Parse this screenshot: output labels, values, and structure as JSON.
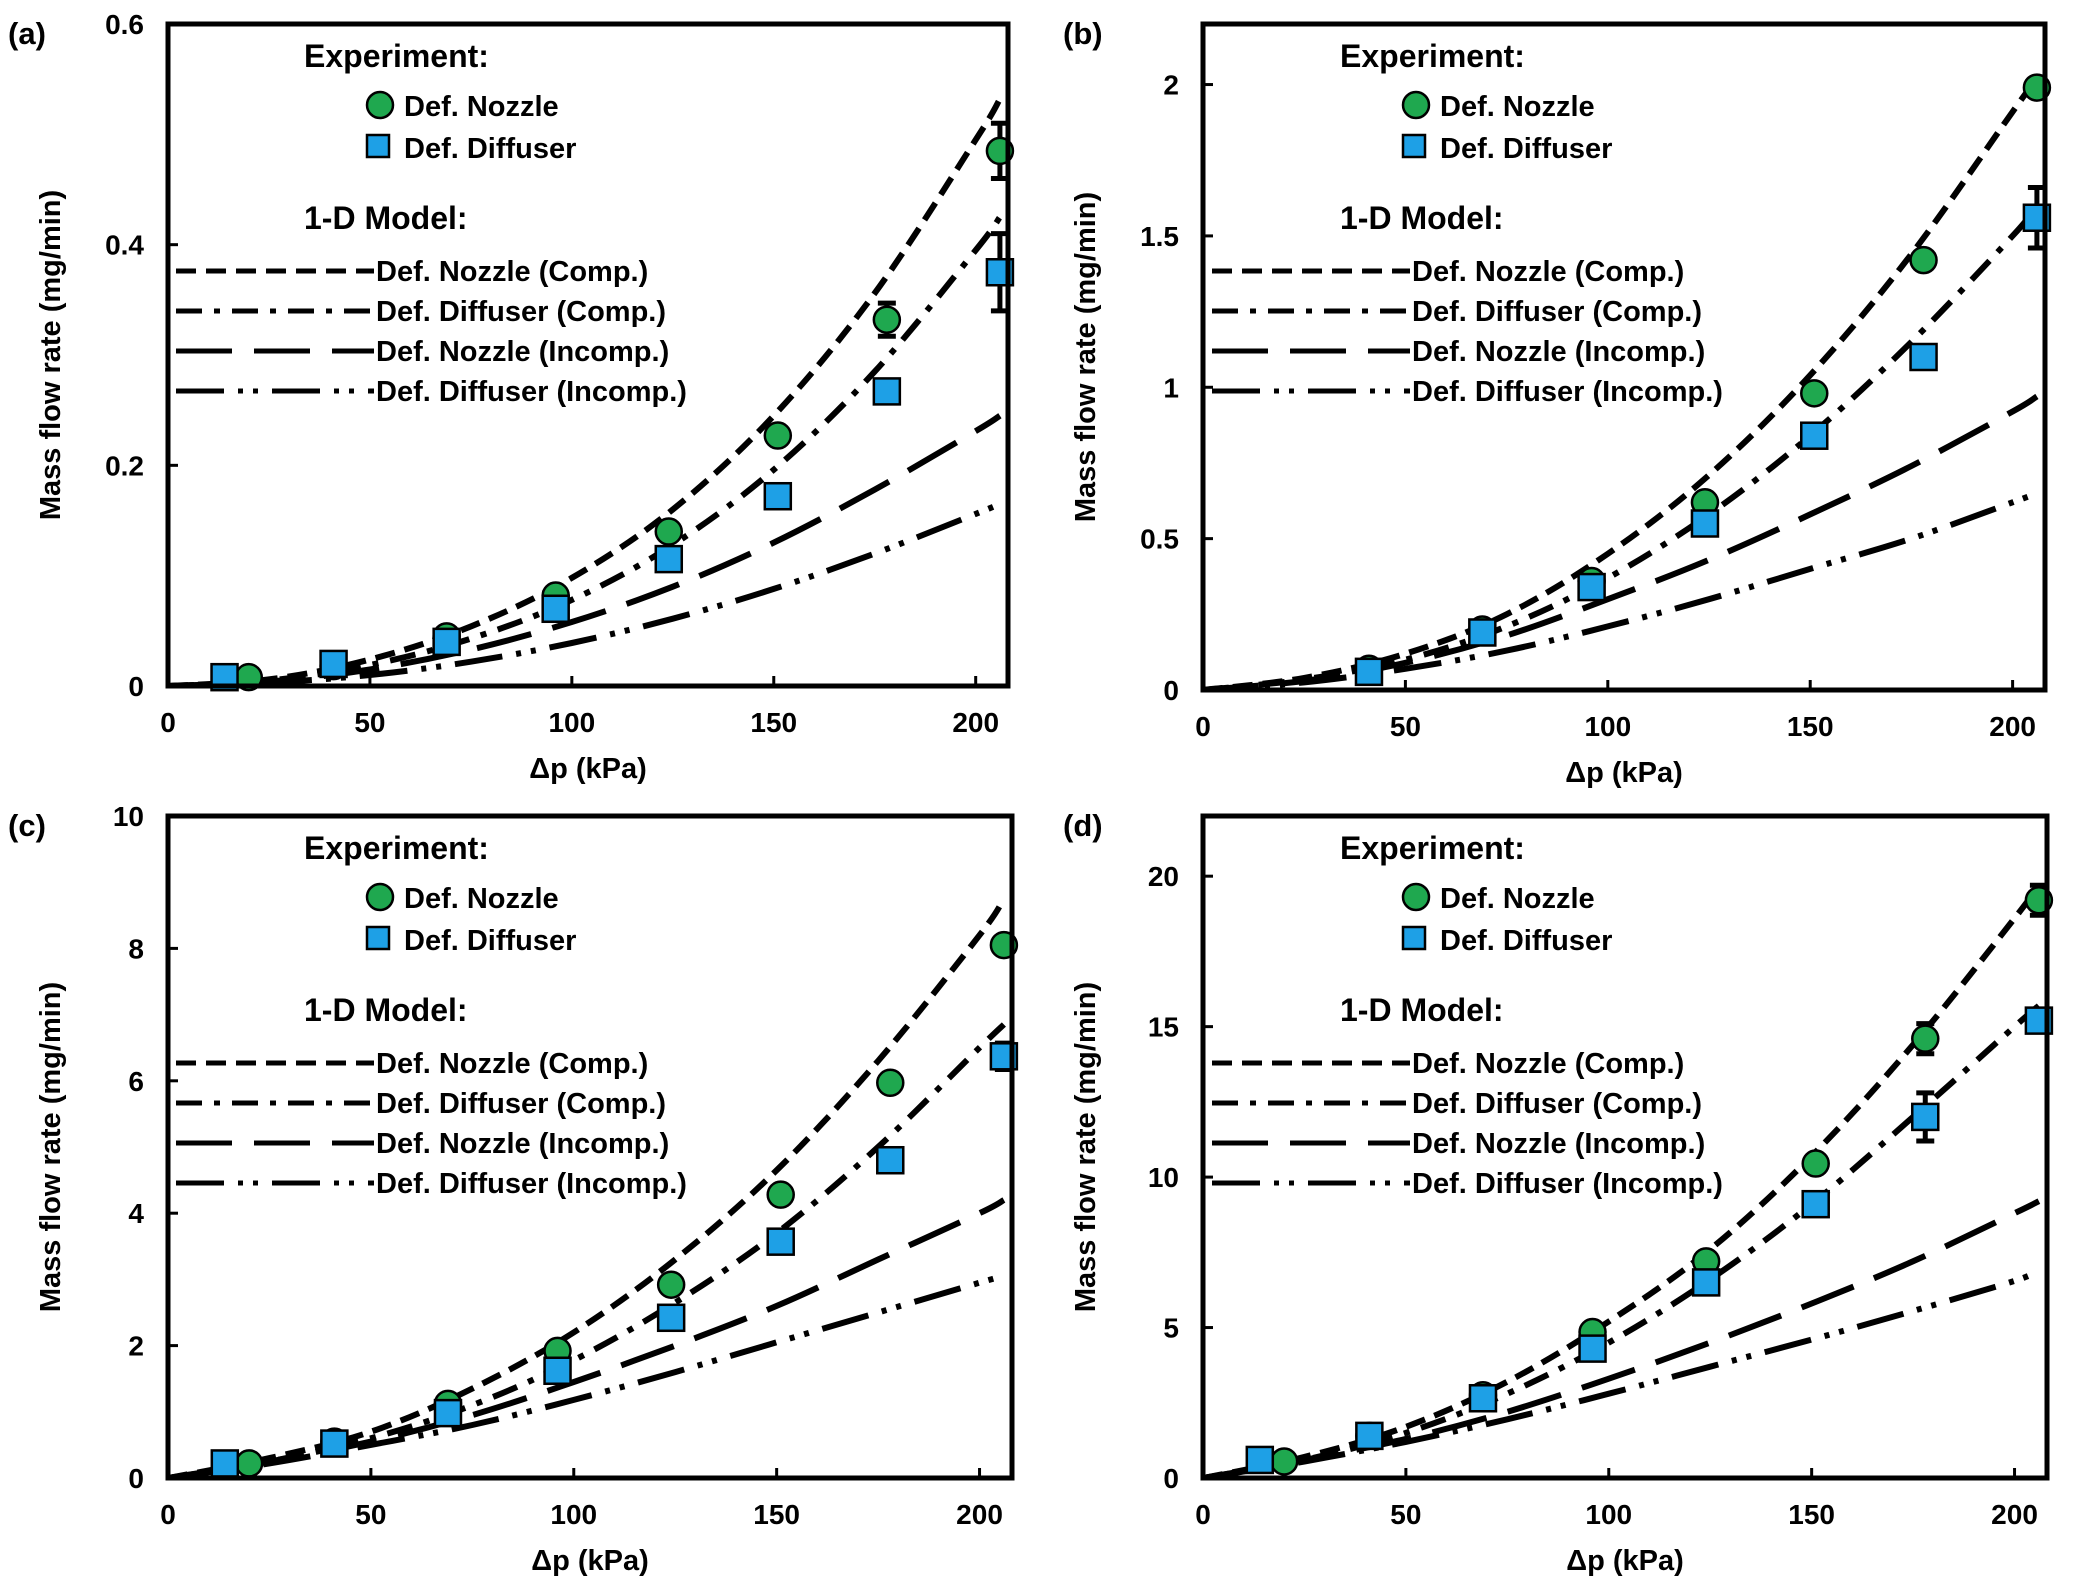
{
  "colors": {
    "nozzle_marker": "#1fa84f",
    "diffuser_marker": "#1ea0e6",
    "line": "#000000",
    "background": "#ffffff"
  },
  "chart_data": [
    {
      "panel_label": "(a)",
      "type": "scatter",
      "xlabel": "Δp (kPa)",
      "ylabel": "Mass flow rate (mg/min)",
      "xlim": [
        0,
        208
      ],
      "ylim": [
        0,
        0.6
      ],
      "xticks": [
        0,
        50,
        100,
        150,
        200
      ],
      "yticks": [
        0,
        0.2,
        0.4,
        0.6
      ],
      "ytick_labels": [
        "0",
        "0.2",
        "0.4",
        "0.6"
      ],
      "grid": false,
      "legend": {
        "experiment_heading": "Experiment:",
        "model_heading": "1-D Model:",
        "entries": [
          "Def. Nozzle",
          "Def. Diffuser",
          "Def. Nozzle (Comp.)",
          "Def. Diffuser (Comp.)",
          "Def. Nozzle (Incomp.)",
          "Def. Diffuser (Incomp.)"
        ],
        "placement": "top-left"
      },
      "series": [
        {
          "name": "Def. Nozzle",
          "kind": "points",
          "marker": "circle",
          "x": [
            20,
            41,
            69,
            96,
            124,
            151,
            178,
            206
          ],
          "y": [
            0.008,
            0.018,
            0.045,
            0.082,
            0.14,
            0.227,
            0.332,
            0.485
          ],
          "err": [
            0,
            0,
            0,
            0,
            0,
            0.005,
            0.015,
            0.025
          ]
        },
        {
          "name": "Def. Diffuser",
          "kind": "points",
          "marker": "square",
          "x": [
            14,
            41,
            69,
            96,
            124,
            151,
            178,
            206
          ],
          "y": [
            0.008,
            0.02,
            0.04,
            0.07,
            0.115,
            0.172,
            0.267,
            0.375
          ],
          "err": [
            0,
            0,
            0,
            0,
            0,
            0,
            0,
            0.035
          ]
        },
        {
          "name": "Def. Nozzle (Comp.)",
          "kind": "curve",
          "dash": "short",
          "x": [
            0,
            25,
            50,
            75,
            100,
            125,
            150,
            175,
            200,
            206
          ],
          "y": [
            0,
            0.006,
            0.024,
            0.054,
            0.098,
            0.16,
            0.245,
            0.356,
            0.495,
            0.532
          ]
        },
        {
          "name": "Def. Diffuser (Comp.)",
          "kind": "curve",
          "dash": "dash-dot",
          "x": [
            0,
            25,
            50,
            75,
            100,
            125,
            150,
            175,
            200,
            206
          ],
          "y": [
            0,
            0.005,
            0.019,
            0.043,
            0.078,
            0.128,
            0.196,
            0.285,
            0.395,
            0.425
          ]
        },
        {
          "name": "Def. Nozzle (Incomp.)",
          "kind": "curve",
          "dash": "long",
          "x": [
            0,
            25,
            50,
            75,
            100,
            125,
            150,
            175,
            200,
            206
          ],
          "y": [
            0,
            0.004,
            0.015,
            0.033,
            0.058,
            0.09,
            0.13,
            0.178,
            0.231,
            0.245
          ]
        },
        {
          "name": "Def. Diffuser (Incomp.)",
          "kind": "curve",
          "dash": "dash-dot-dot",
          "x": [
            0,
            25,
            50,
            75,
            100,
            125,
            150,
            175,
            200,
            206
          ],
          "y": [
            0,
            0.003,
            0.01,
            0.022,
            0.039,
            0.061,
            0.088,
            0.12,
            0.156,
            0.165
          ]
        }
      ]
    },
    {
      "panel_label": "(b)",
      "type": "scatter",
      "xlabel": "Δp (kPa)",
      "ylabel": "Mass flow rate (mg/min)",
      "xlim": [
        0,
        208
      ],
      "ylim": [
        0,
        2.2
      ],
      "xticks": [
        0,
        50,
        100,
        150,
        200
      ],
      "yticks": [
        0,
        0.5,
        1,
        1.5,
        2
      ],
      "ytick_labels": [
        "0",
        "0.5",
        "1",
        "1.5",
        "2"
      ],
      "grid": false,
      "legend": {
        "experiment_heading": "Experiment:",
        "model_heading": "1-D Model:",
        "entries": [
          "Def. Nozzle",
          "Def. Diffuser",
          "Def. Nozzle (Comp.)",
          "Def. Diffuser (Comp.)",
          "Def. Nozzle (Incomp.)",
          "Def. Diffuser (Incomp.)"
        ],
        "placement": "top-left"
      },
      "series": [
        {
          "name": "Def. Nozzle",
          "kind": "points",
          "marker": "circle",
          "x": [
            41,
            69,
            96,
            124,
            151,
            178,
            206
          ],
          "y": [
            0.07,
            0.2,
            0.36,
            0.62,
            0.98,
            1.42,
            1.99
          ],
          "err": [
            0,
            0,
            0,
            0,
            0,
            0,
            0
          ]
        },
        {
          "name": "Def. Diffuser",
          "kind": "points",
          "marker": "square",
          "x": [
            41,
            69,
            96,
            124,
            151,
            178,
            206
          ],
          "y": [
            0.06,
            0.19,
            0.34,
            0.55,
            0.84,
            1.1,
            1.56
          ],
          "err": [
            0,
            0,
            0,
            0,
            0,
            0,
            0.1
          ]
        },
        {
          "name": "Def. Nozzle (Comp.)",
          "kind": "curve",
          "dash": "short",
          "x": [
            0,
            25,
            50,
            75,
            100,
            125,
            150,
            175,
            200,
            206
          ],
          "y": [
            0,
            0.04,
            0.12,
            0.25,
            0.45,
            0.71,
            1.04,
            1.44,
            1.91,
            2.02
          ]
        },
        {
          "name": "Def. Diffuser (Comp.)",
          "kind": "curve",
          "dash": "dash-dot",
          "x": [
            0,
            25,
            50,
            75,
            100,
            125,
            150,
            175,
            200,
            206
          ],
          "y": [
            0,
            0.035,
            0.1,
            0.21,
            0.37,
            0.58,
            0.84,
            1.15,
            1.5,
            1.6
          ]
        },
        {
          "name": "Def. Nozzle (Incomp.)",
          "kind": "curve",
          "dash": "long",
          "x": [
            0,
            25,
            50,
            75,
            100,
            125,
            150,
            175,
            200,
            206
          ],
          "y": [
            0,
            0.03,
            0.09,
            0.18,
            0.3,
            0.43,
            0.58,
            0.74,
            0.92,
            0.97
          ]
        },
        {
          "name": "Def. Diffuser (Incomp.)",
          "kind": "curve",
          "dash": "dash-dot-dot",
          "x": [
            0,
            25,
            50,
            75,
            100,
            125,
            150,
            175,
            200,
            206
          ],
          "y": [
            0,
            0.025,
            0.07,
            0.13,
            0.21,
            0.3,
            0.4,
            0.5,
            0.62,
            0.65
          ]
        }
      ]
    },
    {
      "panel_label": "(c)",
      "type": "scatter",
      "xlabel": "Δp (kPa)",
      "ylabel": "Mass flow rate (mg/min)",
      "xlim": [
        0,
        208
      ],
      "ylim": [
        0,
        10
      ],
      "xticks": [
        0,
        50,
        100,
        150,
        200
      ],
      "yticks": [
        0,
        2,
        4,
        6,
        8,
        10
      ],
      "ytick_labels": [
        "0",
        "2",
        "4",
        "6",
        "8",
        "10"
      ],
      "grid": false,
      "legend": {
        "experiment_heading": "Experiment:",
        "model_heading": "1-D Model:",
        "entries": [
          "Def. Nozzle",
          "Def. Diffuser",
          "Def. Nozzle (Comp.)",
          "Def. Diffuser (Comp.)",
          "Def. Nozzle (Incomp.)",
          "Def. Diffuser (Incomp.)"
        ],
        "placement": "top-left"
      },
      "series": [
        {
          "name": "Def. Nozzle",
          "kind": "points",
          "marker": "circle",
          "x": [
            20,
            41,
            69,
            96,
            124,
            151,
            178,
            206
          ],
          "y": [
            0.22,
            0.55,
            1.12,
            1.92,
            2.92,
            4.28,
            5.97,
            8.05
          ],
          "err": [
            0,
            0,
            0,
            0,
            0,
            0,
            0,
            0
          ]
        },
        {
          "name": "Def. Diffuser",
          "kind": "points",
          "marker": "square",
          "x": [
            14,
            41,
            69,
            96,
            124,
            151,
            178,
            206
          ],
          "y": [
            0.22,
            0.52,
            0.98,
            1.62,
            2.42,
            3.57,
            4.8,
            6.37
          ],
          "err": [
            0,
            0,
            0,
            0,
            0,
            0,
            0,
            0.2
          ]
        },
        {
          "name": "Def. Nozzle (Comp.)",
          "kind": "curve",
          "dash": "short",
          "x": [
            0,
            25,
            50,
            75,
            100,
            125,
            150,
            175,
            200,
            206
          ],
          "y": [
            0,
            0.3,
            0.7,
            1.35,
            2.2,
            3.3,
            4.65,
            6.3,
            8.2,
            8.75
          ]
        },
        {
          "name": "Def. Diffuser (Comp.)",
          "kind": "curve",
          "dash": "dash-dot",
          "x": [
            0,
            25,
            50,
            75,
            100,
            125,
            150,
            175,
            200,
            206
          ],
          "y": [
            0,
            0.25,
            0.6,
            1.1,
            1.78,
            2.65,
            3.7,
            5.0,
            6.5,
            6.85
          ]
        },
        {
          "name": "Def. Nozzle (Incomp.)",
          "kind": "curve",
          "dash": "long",
          "x": [
            0,
            25,
            50,
            75,
            100,
            125,
            150,
            175,
            200,
            206
          ],
          "y": [
            0,
            0.25,
            0.55,
            0.95,
            1.45,
            2.0,
            2.6,
            3.3,
            4.0,
            4.2
          ]
        },
        {
          "name": "Def. Diffuser (Incomp.)",
          "kind": "curve",
          "dash": "dash-dot-dot",
          "x": [
            0,
            25,
            50,
            75,
            100,
            125,
            150,
            175,
            200,
            206
          ],
          "y": [
            0,
            0.22,
            0.5,
            0.8,
            1.18,
            1.6,
            2.05,
            2.5,
            2.95,
            3.05
          ]
        }
      ]
    },
    {
      "panel_label": "(d)",
      "type": "scatter",
      "xlabel": "Δp (kPa)",
      "ylabel": "Mass flow rate (mg/min)",
      "xlim": [
        0,
        208
      ],
      "ylim": [
        0,
        22
      ],
      "xticks": [
        0,
        50,
        100,
        150,
        200
      ],
      "yticks": [
        0,
        5,
        10,
        15,
        20
      ],
      "ytick_labels": [
        "0",
        "5",
        "10",
        "15",
        "20"
      ],
      "grid": false,
      "legend": {
        "experiment_heading": "Experiment:",
        "model_heading": "1-D Model:",
        "entries": [
          "Def. Nozzle",
          "Def. Diffuser",
          "Def. Nozzle (Comp.)",
          "Def. Diffuser (Comp.)",
          "Def. Nozzle (Incomp.)",
          "Def. Diffuser (Incomp.)"
        ],
        "placement": "top-left"
      },
      "series": [
        {
          "name": "Def. Nozzle",
          "kind": "points",
          "marker": "circle",
          "x": [
            20,
            41,
            69,
            96,
            124,
            151,
            178,
            206
          ],
          "y": [
            0.55,
            1.4,
            2.75,
            4.85,
            7.2,
            10.45,
            14.6,
            19.2
          ],
          "err": [
            0,
            0,
            0,
            0,
            0,
            0,
            0.5,
            0.5
          ]
        },
        {
          "name": "Def. Diffuser",
          "kind": "points",
          "marker": "square",
          "x": [
            14,
            41,
            69,
            96,
            124,
            151,
            178,
            206
          ],
          "y": [
            0.6,
            1.4,
            2.65,
            4.3,
            6.5,
            9.1,
            12.0,
            15.2
          ],
          "err": [
            0,
            0,
            0,
            0,
            0,
            0,
            0.8,
            0
          ]
        },
        {
          "name": "Def. Nozzle (Comp.)",
          "kind": "curve",
          "dash": "short",
          "x": [
            0,
            25,
            50,
            75,
            100,
            125,
            150,
            175,
            200,
            206
          ],
          "y": [
            0,
            0.7,
            1.7,
            3.2,
            5.2,
            7.6,
            10.7,
            14.4,
            18.6,
            19.7
          ]
        },
        {
          "name": "Def. Diffuser (Comp.)",
          "kind": "curve",
          "dash": "dash-dot",
          "x": [
            0,
            25,
            50,
            75,
            100,
            125,
            150,
            175,
            200,
            206
          ],
          "y": [
            0,
            0.6,
            1.5,
            2.8,
            4.5,
            6.6,
            9.1,
            12.0,
            15.0,
            15.7
          ]
        },
        {
          "name": "Def. Nozzle (Incomp.)",
          "kind": "curve",
          "dash": "long",
          "x": [
            0,
            25,
            50,
            75,
            100,
            125,
            150,
            175,
            200,
            206
          ],
          "y": [
            0,
            0.6,
            1.3,
            2.2,
            3.3,
            4.5,
            5.8,
            7.2,
            8.8,
            9.2
          ]
        },
        {
          "name": "Def. Diffuser (Incomp.)",
          "kind": "curve",
          "dash": "dash-dot-dot",
          "x": [
            0,
            25,
            50,
            75,
            100,
            125,
            150,
            175,
            200,
            206
          ],
          "y": [
            0,
            0.55,
            1.2,
            1.95,
            2.8,
            3.7,
            4.6,
            5.55,
            6.55,
            6.9
          ]
        }
      ]
    }
  ]
}
